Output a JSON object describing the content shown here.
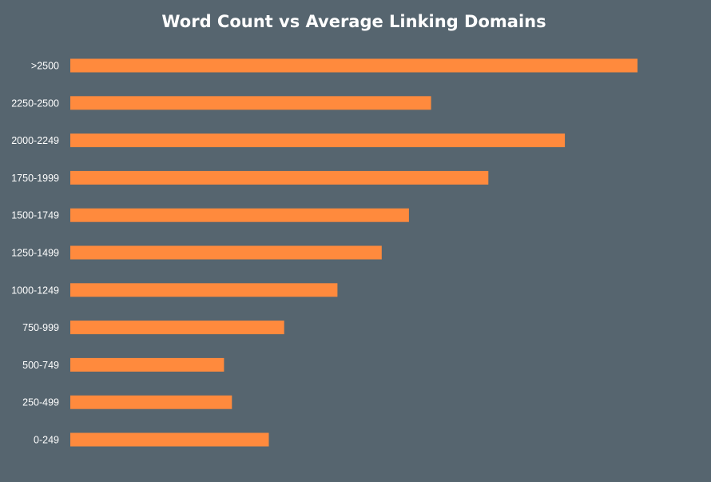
{
  "chart_data": {
    "type": "bar",
    "orientation": "horizontal",
    "title": "Word Count vs Average Linking Domains",
    "xlabel": "",
    "ylabel": "",
    "categories": [
      ">2500",
      "2250-2500",
      "2000-2249",
      "1750-1999",
      "1500-1749",
      "1250-1499",
      "1000-1249",
      "750-999",
      "500-749",
      "250-499",
      "0-249"
    ],
    "values": [
      100,
      63.6,
      87.2,
      73.7,
      59.7,
      54.9,
      47.1,
      37.7,
      27.1,
      28.5,
      35.0
    ],
    "xlim": [
      0,
      100
    ],
    "grid": false,
    "legend": "none",
    "bar_color": "#ff8a3d",
    "background_color": "#56656f",
    "title_color": "#ffffff",
    "label_color": "#ffffff"
  }
}
